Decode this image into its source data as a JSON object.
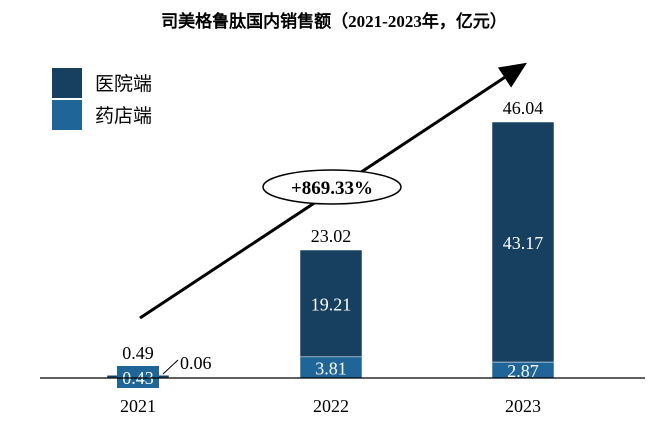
{
  "chart_data": {
    "type": "bar",
    "stacked": true,
    "title": "司美格鲁肽国内销售额（2021-2023年，亿元）",
    "categories": [
      "2021",
      "2022",
      "2023"
    ],
    "series": [
      {
        "name": "医院端",
        "values": [
          0.43,
          19.21,
          43.17
        ],
        "color": "#173f60"
      },
      {
        "name": "药店端",
        "values": [
          0.06,
          3.81,
          2.87
        ],
        "color": "#1f6598"
      }
    ],
    "totals": [
      0.49,
      23.02,
      46.04
    ],
    "annotation": "+869.33%",
    "legend_position": "top-left",
    "grid": false,
    "ylim": [
      0,
      50
    ]
  }
}
